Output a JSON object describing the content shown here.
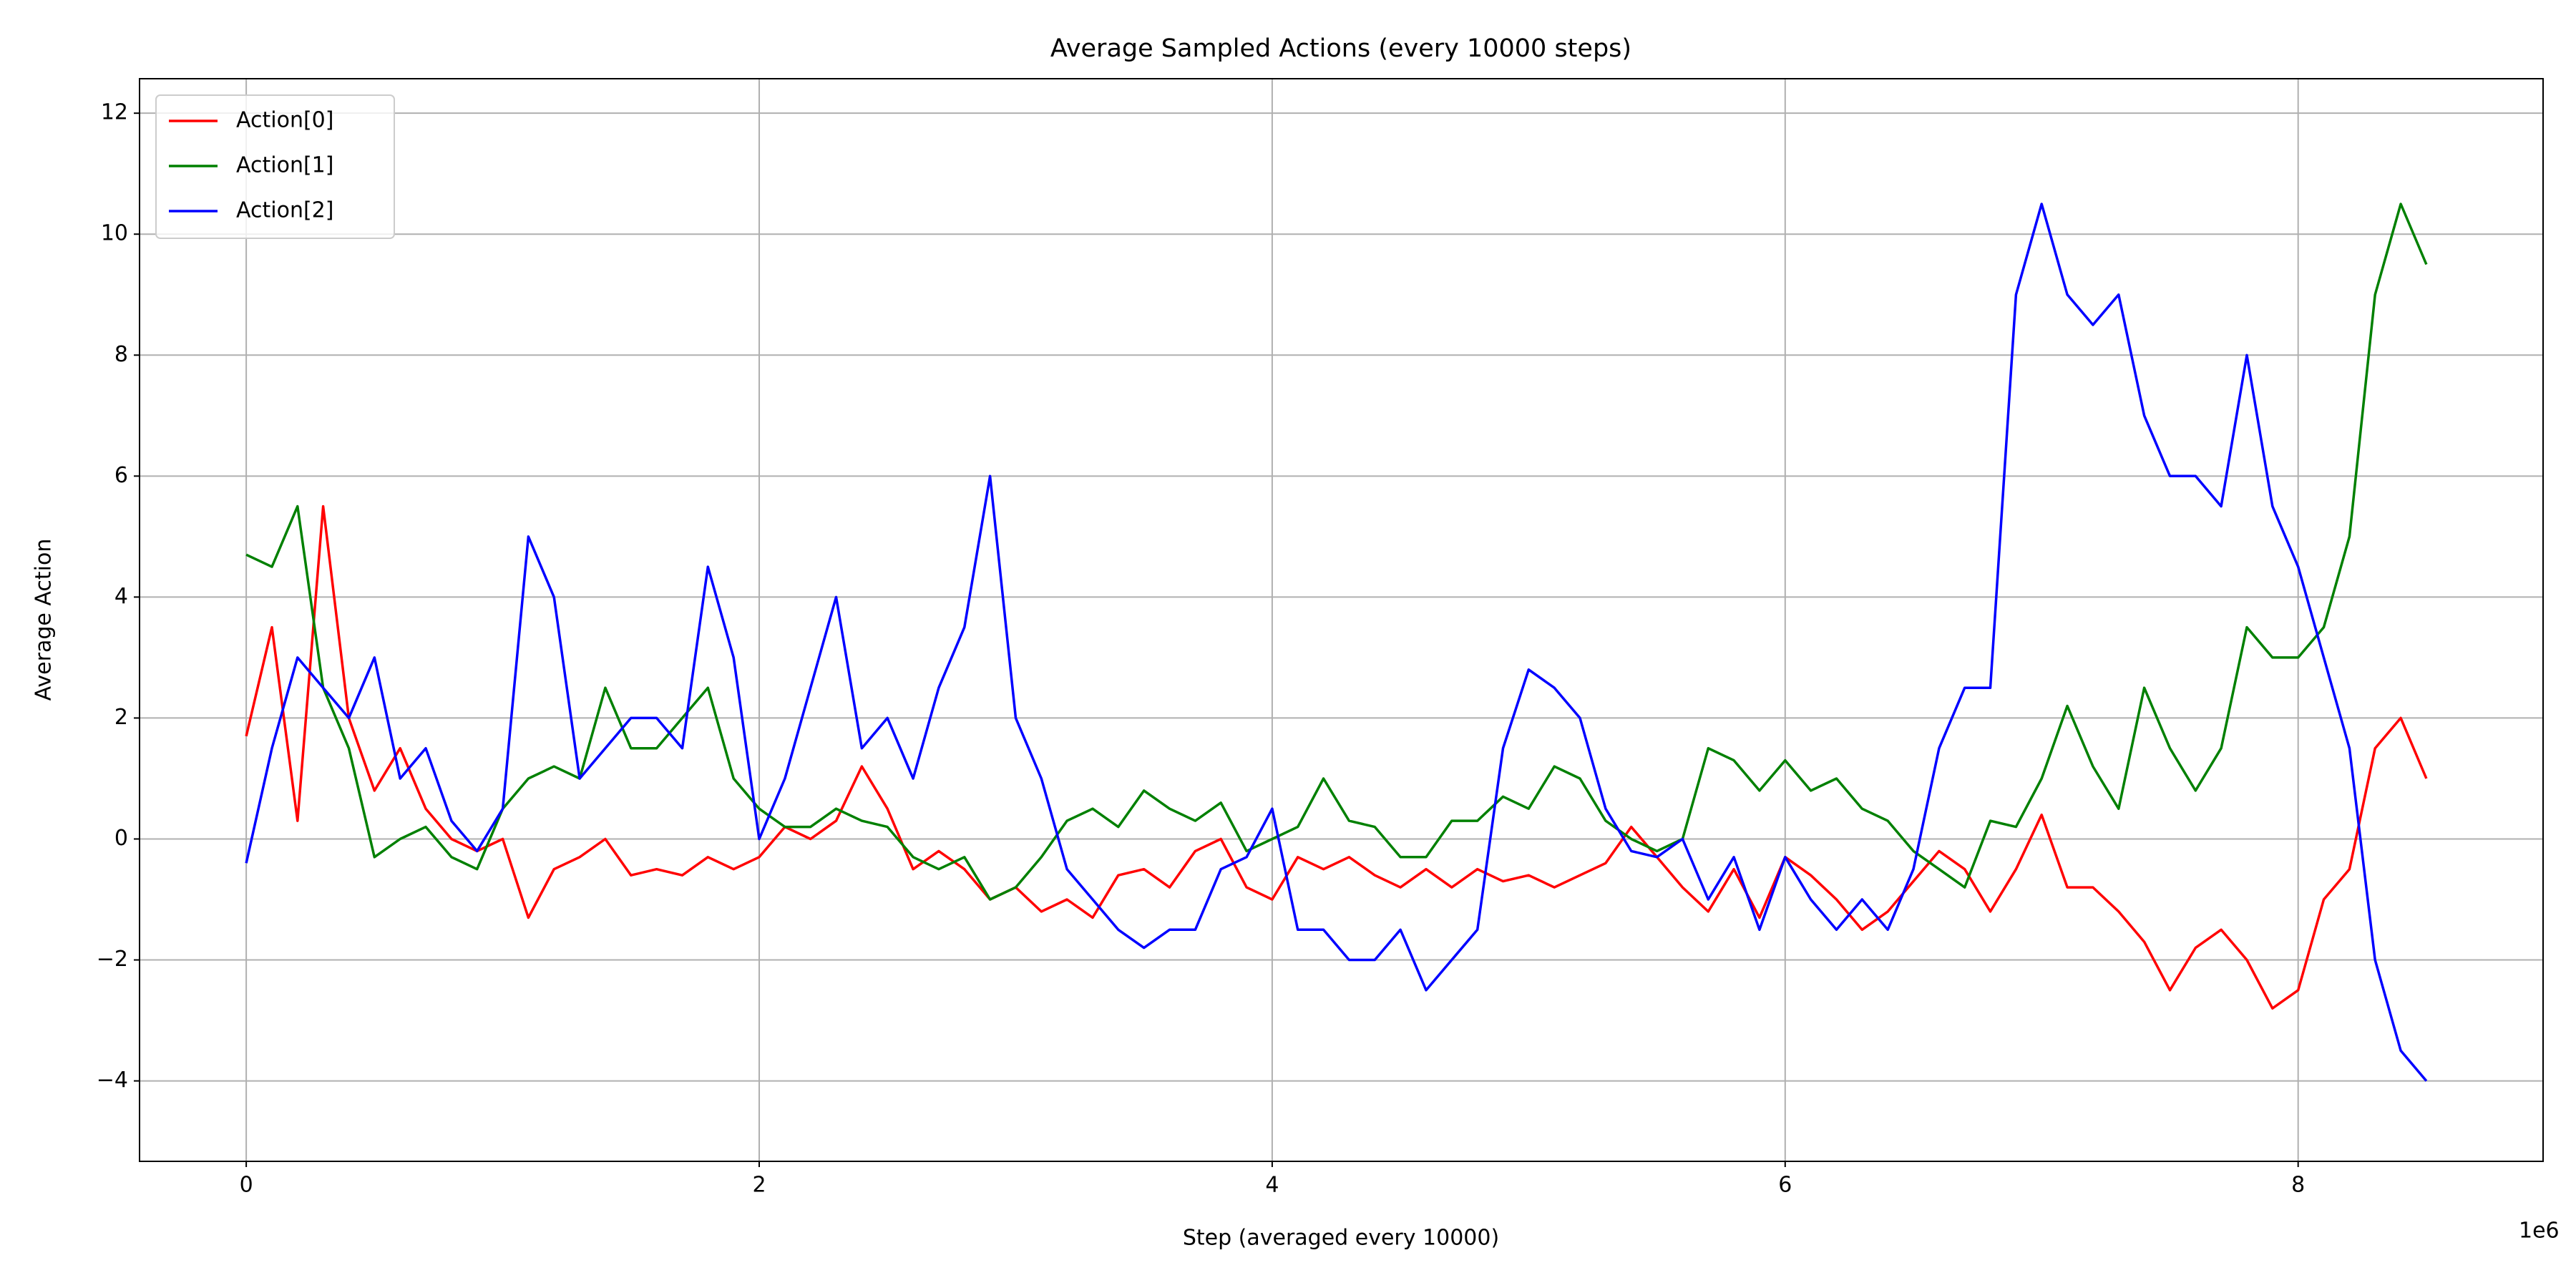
{
  "chart_data": {
    "type": "line",
    "title": "Average Sampled Actions (every 10000 steps)",
    "x_label": "Step (averaged every 10000)",
    "x_offset_label": "1e6",
    "y_label": "Average Action",
    "x": [
      0,
      0.1,
      0.2,
      0.3,
      0.4,
      0.5,
      0.6,
      0.7,
      0.8,
      0.9,
      1.0,
      1.1,
      1.2,
      1.3,
      1.4,
      1.5,
      1.6,
      1.7,
      1.8,
      1.9,
      2.0,
      2.1,
      2.2,
      2.3,
      2.4,
      2.5,
      2.6,
      2.7,
      2.8,
      2.9,
      3.0,
      3.1,
      3.2,
      3.3,
      3.4,
      3.5,
      3.6,
      3.7,
      3.8,
      3.9,
      4.0,
      4.1,
      4.2,
      4.3,
      4.4,
      4.5,
      4.6,
      4.7,
      4.8,
      4.9,
      5.0,
      5.1,
      5.2,
      5.3,
      5.4,
      5.5,
      5.6,
      5.7,
      5.8,
      5.9,
      6.0,
      6.1,
      6.2,
      6.3,
      6.4,
      6.5,
      6.6,
      6.7,
      6.8,
      6.9,
      7.0,
      7.1,
      7.2,
      7.3,
      7.4,
      7.5,
      7.6,
      7.7,
      7.8,
      7.9,
      8.0,
      8.1,
      8.2,
      8.3,
      8.4,
      8.5
    ],
    "series": [
      {
        "name": "Action[0]",
        "color": "#ff0000",
        "values": [
          1.7,
          3.5,
          0.3,
          5.5,
          2.0,
          0.8,
          1.5,
          0.5,
          0.0,
          -0.2,
          0.0,
          -1.3,
          -0.5,
          -0.3,
          0.0,
          -0.6,
          -0.5,
          -0.6,
          -0.3,
          -0.5,
          -0.3,
          0.2,
          0.0,
          0.3,
          1.2,
          0.5,
          -0.5,
          -0.2,
          -0.5,
          -1.0,
          -0.8,
          -1.2,
          -1.0,
          -1.3,
          -0.6,
          -0.5,
          -0.8,
          -0.2,
          0.0,
          -0.8,
          -1.0,
          -0.3,
          -0.5,
          -0.3,
          -0.6,
          -0.8,
          -0.5,
          -0.8,
          -0.5,
          -0.7,
          -0.6,
          -0.8,
          -0.6,
          -0.4,
          0.2,
          -0.3,
          -0.8,
          -1.2,
          -0.5,
          -1.3,
          -0.3,
          -0.6,
          -1.0,
          -1.5,
          -1.2,
          -0.7,
          -0.2,
          -0.5,
          -1.2,
          -0.5,
          0.4,
          -0.8,
          -0.8,
          -1.2,
          -1.7,
          -2.5,
          -1.8,
          -1.5,
          -2.0,
          -2.8,
          -2.5,
          -1.0,
          -0.5,
          1.5,
          2.0,
          1.0
        ]
      },
      {
        "name": "Action[1]",
        "color": "#008000",
        "values": [
          4.7,
          4.5,
          5.5,
          2.5,
          1.5,
          -0.3,
          0.0,
          0.2,
          -0.3,
          -0.5,
          0.5,
          1.0,
          1.2,
          1.0,
          2.5,
          1.5,
          1.5,
          2.0,
          2.5,
          1.0,
          0.5,
          0.2,
          0.2,
          0.5,
          0.3,
          0.2,
          -0.3,
          -0.5,
          -0.3,
          -1.0,
          -0.8,
          -0.3,
          0.3,
          0.5,
          0.2,
          0.8,
          0.5,
          0.3,
          0.6,
          -0.2,
          0.0,
          0.2,
          1.0,
          0.3,
          0.2,
          -0.3,
          -0.3,
          0.3,
          0.3,
          0.7,
          0.5,
          1.2,
          1.0,
          0.3,
          0.0,
          -0.2,
          0.0,
          1.5,
          1.3,
          0.8,
          1.3,
          0.8,
          1.0,
          0.5,
          0.3,
          -0.2,
          -0.5,
          -0.8,
          0.3,
          0.2,
          1.0,
          2.2,
          1.2,
          0.5,
          2.5,
          1.5,
          0.8,
          1.5,
          3.5,
          3.0,
          3.0,
          3.5,
          5.0,
          9.0,
          10.5,
          9.5
        ]
      },
      {
        "name": "Action[2]",
        "color": "#0000ff",
        "values": [
          -0.4,
          1.5,
          3.0,
          2.5,
          2.0,
          3.0,
          1.0,
          1.5,
          0.3,
          -0.2,
          0.5,
          5.0,
          4.0,
          1.0,
          1.5,
          2.0,
          2.0,
          1.5,
          4.5,
          3.0,
          0.0,
          1.0,
          2.5,
          4.0,
          1.5,
          2.0,
          1.0,
          2.5,
          3.5,
          6.0,
          2.0,
          1.0,
          -0.5,
          -1.0,
          -1.5,
          -1.8,
          -1.5,
          -1.5,
          -0.5,
          -0.3,
          0.5,
          -1.5,
          -1.5,
          -2.0,
          -2.0,
          -1.5,
          -2.5,
          -2.0,
          -1.5,
          1.5,
          2.8,
          2.5,
          2.0,
          0.5,
          -0.2,
          -0.3,
          0.0,
          -1.0,
          -0.3,
          -1.5,
          -0.3,
          -1.0,
          -1.5,
          -1.0,
          -1.5,
          -0.5,
          1.5,
          2.5,
          2.5,
          9.0,
          10.5,
          9.0,
          8.5,
          9.0,
          7.0,
          6.0,
          6.0,
          5.5,
          8.0,
          5.5,
          4.5,
          3.0,
          1.5,
          -2.0,
          -3.5,
          -4.0
        ]
      }
    ],
    "xlim": [
      -0.416,
      8.955
    ],
    "ylim": [
      -5.33,
      12.57
    ],
    "xticks": [
      0,
      2,
      4,
      6,
      8
    ],
    "yticks": [
      {
        "value": -4,
        "label": "−4"
      },
      {
        "value": -2,
        "label": "−2"
      },
      0,
      2,
      4,
      6,
      8,
      10,
      12
    ],
    "grid": true,
    "legend": "upper left"
  }
}
